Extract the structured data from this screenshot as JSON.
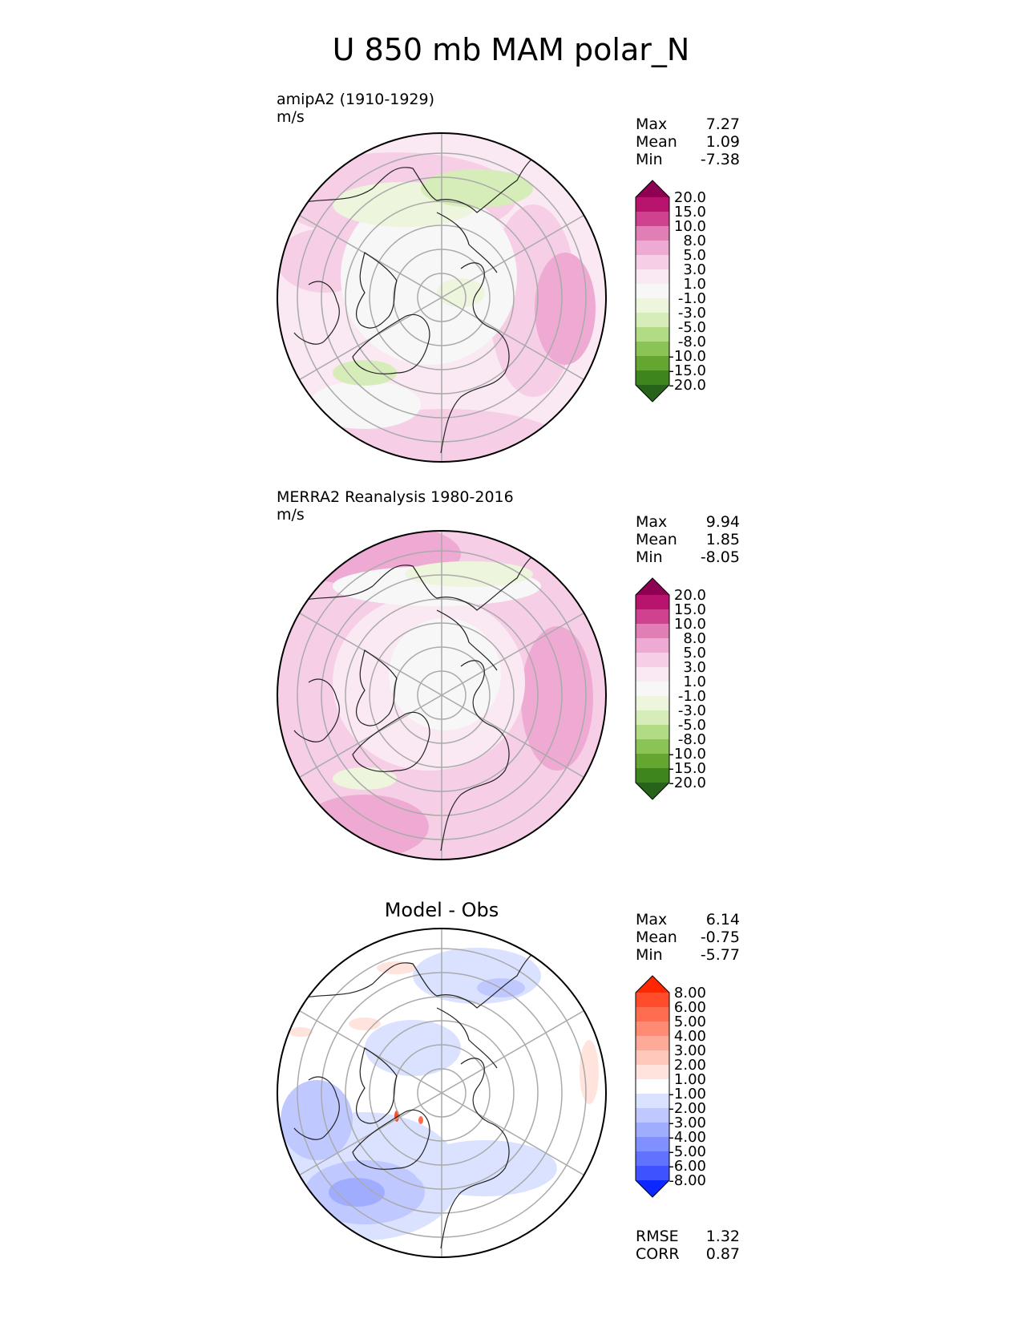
{
  "title": "U 850 mb MAM polar_N",
  "panels": [
    {
      "id": "model",
      "title_line1": "amipA2 (1910-1929)",
      "title_line2": "m/s",
      "stats": [
        {
          "label": "Max",
          "value": "7.27"
        },
        {
          "label": "Mean",
          "value": "1.09"
        },
        {
          "label": "Min",
          "value": "-7.38"
        }
      ]
    },
    {
      "id": "obs",
      "title_line1": "MERRA2 Reanalysis 1980-2016",
      "title_line2": "m/s",
      "stats": [
        {
          "label": "Max",
          "value": "9.94"
        },
        {
          "label": "Mean",
          "value": "1.85"
        },
        {
          "label": "Min",
          "value": "-8.05"
        }
      ]
    },
    {
      "id": "diff",
      "title_center": "Model - Obs",
      "stats": [
        {
          "label": "Max",
          "value": "6.14"
        },
        {
          "label": "Mean",
          "value": "-0.75"
        },
        {
          "label": "Min",
          "value": "-5.77"
        }
      ],
      "metrics": [
        {
          "label": "RMSE",
          "value": "1.32"
        },
        {
          "label": "CORR",
          "value": "0.87"
        }
      ]
    }
  ],
  "colorbars": {
    "field": {
      "ticks": [
        "20.0",
        "15.0",
        "10.0",
        "8.0",
        "5.0",
        "3.0",
        "1.0",
        "-1.0",
        "-3.0",
        "-5.0",
        "-8.0",
        "-10.0",
        "-15.0",
        "-20.0"
      ],
      "colors": [
        "#8e0152",
        "#b8146e",
        "#d0428f",
        "#e27eb6",
        "#efaad3",
        "#f6cfe7",
        "#fae8f3",
        "#f7f7f7",
        "#edf5dc",
        "#d7edb9",
        "#b2db85",
        "#8cc356",
        "#65a630",
        "#3e851e",
        "#276419"
      ]
    },
    "diff": {
      "ticks": [
        "8.00",
        "6.00",
        "5.00",
        "4.00",
        "3.00",
        "2.00",
        "1.00",
        "-1.00",
        "-2.00",
        "-3.00",
        "-4.00",
        "-5.00",
        "-6.00",
        "-8.00"
      ],
      "colors": [
        "#ff2600",
        "#ff4d2b",
        "#ff6d50",
        "#ff8b73",
        "#ffaa98",
        "#ffc8bb",
        "#ffe3dc",
        "#ffffff",
        "#dbe2ff",
        "#bfc8ff",
        "#a0adff",
        "#8190ff",
        "#6172ff",
        "#3f52ff",
        "#0a28ff"
      ]
    }
  }
}
